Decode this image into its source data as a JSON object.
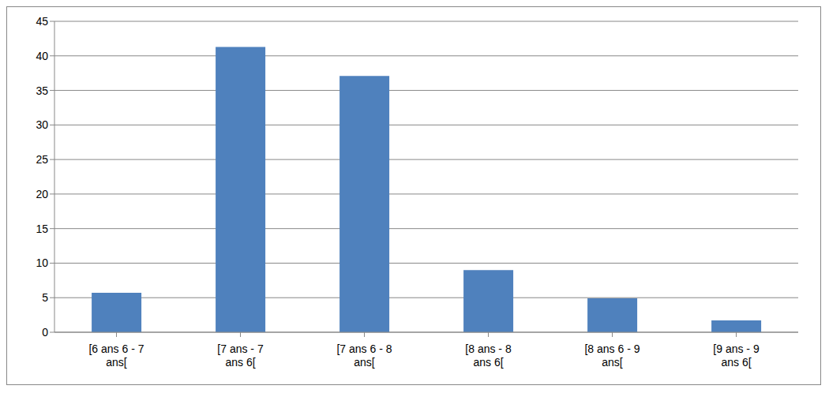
{
  "chart_data": {
    "type": "bar",
    "categories": [
      "[6 ans 6 - 7 ans[",
      "[7 ans - 7 ans 6[",
      "[7 ans 6 - 8 ans[",
      "[8 ans - 8 ans 6[",
      "[8 ans 6 - 9 ans[",
      "[9 ans - 9 ans 6["
    ],
    "values": [
      5.7,
      41.3,
      37.1,
      9,
      4.9,
      1.7
    ],
    "color": "#4f81bd",
    "ylim": [
      0,
      45
    ],
    "yticks": [
      0,
      5,
      10,
      15,
      20,
      25,
      30,
      35,
      40,
      45
    ],
    "grid": true
  }
}
